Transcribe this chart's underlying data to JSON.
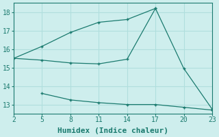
{
  "title": "",
  "xlabel": "Humidex (Indice chaleur)",
  "background_color": "#ceeeed",
  "grid_color": "#b0dedd",
  "line_color": "#1a7a6e",
  "series1_x": [
    2,
    5,
    8,
    11,
    14,
    17,
    20,
    23
  ],
  "series1_y": [
    15.5,
    15.4,
    15.25,
    15.2,
    15.45,
    18.2,
    14.95,
    12.75
  ],
  "series2_x": [
    2,
    5,
    8,
    11,
    14,
    17
  ],
  "series2_y": [
    15.5,
    16.15,
    16.9,
    17.45,
    17.6,
    18.2
  ],
  "series3_x": [
    5,
    8,
    11,
    14,
    17,
    20,
    23
  ],
  "series3_y": [
    13.6,
    13.25,
    13.1,
    13.0,
    13.0,
    12.85,
    12.7
  ],
  "xlim": [
    2,
    23
  ],
  "ylim": [
    12.5,
    18.5
  ],
  "xticks": [
    2,
    5,
    8,
    11,
    14,
    17,
    20,
    23
  ],
  "yticks": [
    13,
    14,
    15,
    16,
    17,
    18
  ],
  "marker_size": 3,
  "line_width": 0.9,
  "xlabel_fontsize": 8
}
